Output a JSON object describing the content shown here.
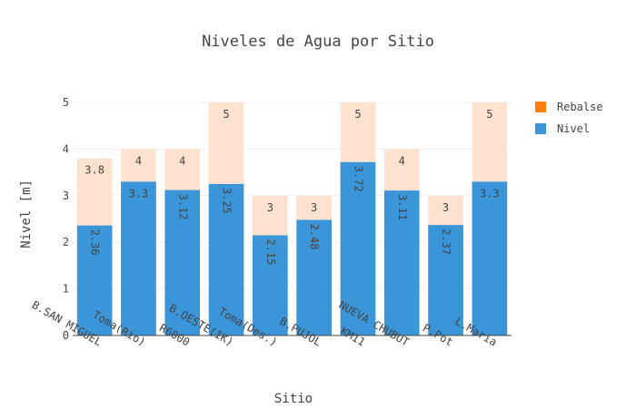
{
  "chart_data": {
    "type": "bar",
    "barmode": "overlay",
    "title": "Niveles de Agua por Sitio",
    "xlabel": "Sitio",
    "ylabel": "Nivel [m]",
    "ylim": [
      0,
      5
    ],
    "yticks": [
      "0",
      "1",
      "2",
      "3",
      "4",
      "5"
    ],
    "grid": true,
    "legend_position": "top-right",
    "categories": [
      "B.SAN MIGUEL",
      "Toma(Rio)",
      "R6000",
      "B.OESTE(IK)",
      "Toma(Des.)",
      "B.PUJOL",
      "KM11",
      "NUEVA CHUBUT",
      "P.Pot",
      "L.Maria"
    ],
    "series": [
      {
        "name": "Rebalse",
        "color": "#ff7f0e",
        "bar_fill": "#fde3cf",
        "values": [
          3.8,
          4,
          4,
          5,
          3,
          3,
          5,
          4,
          3,
          5
        ],
        "labels": [
          "3.8",
          "4",
          "4",
          "5",
          "3",
          "3",
          "5",
          "4",
          "3",
          "5"
        ]
      },
      {
        "name": "Nivel",
        "color": "#3a95d9",
        "bar_fill": "#3a95d9",
        "values": [
          2.36,
          3.3,
          3.12,
          3.25,
          2.15,
          2.48,
          3.72,
          3.11,
          2.37,
          3.3
        ],
        "labels": [
          "2.36",
          "3.3",
          "3.12",
          "3.25",
          "2.15",
          "2.48",
          "3.72",
          "3.11",
          "2.37",
          "3.3"
        ]
      }
    ]
  }
}
